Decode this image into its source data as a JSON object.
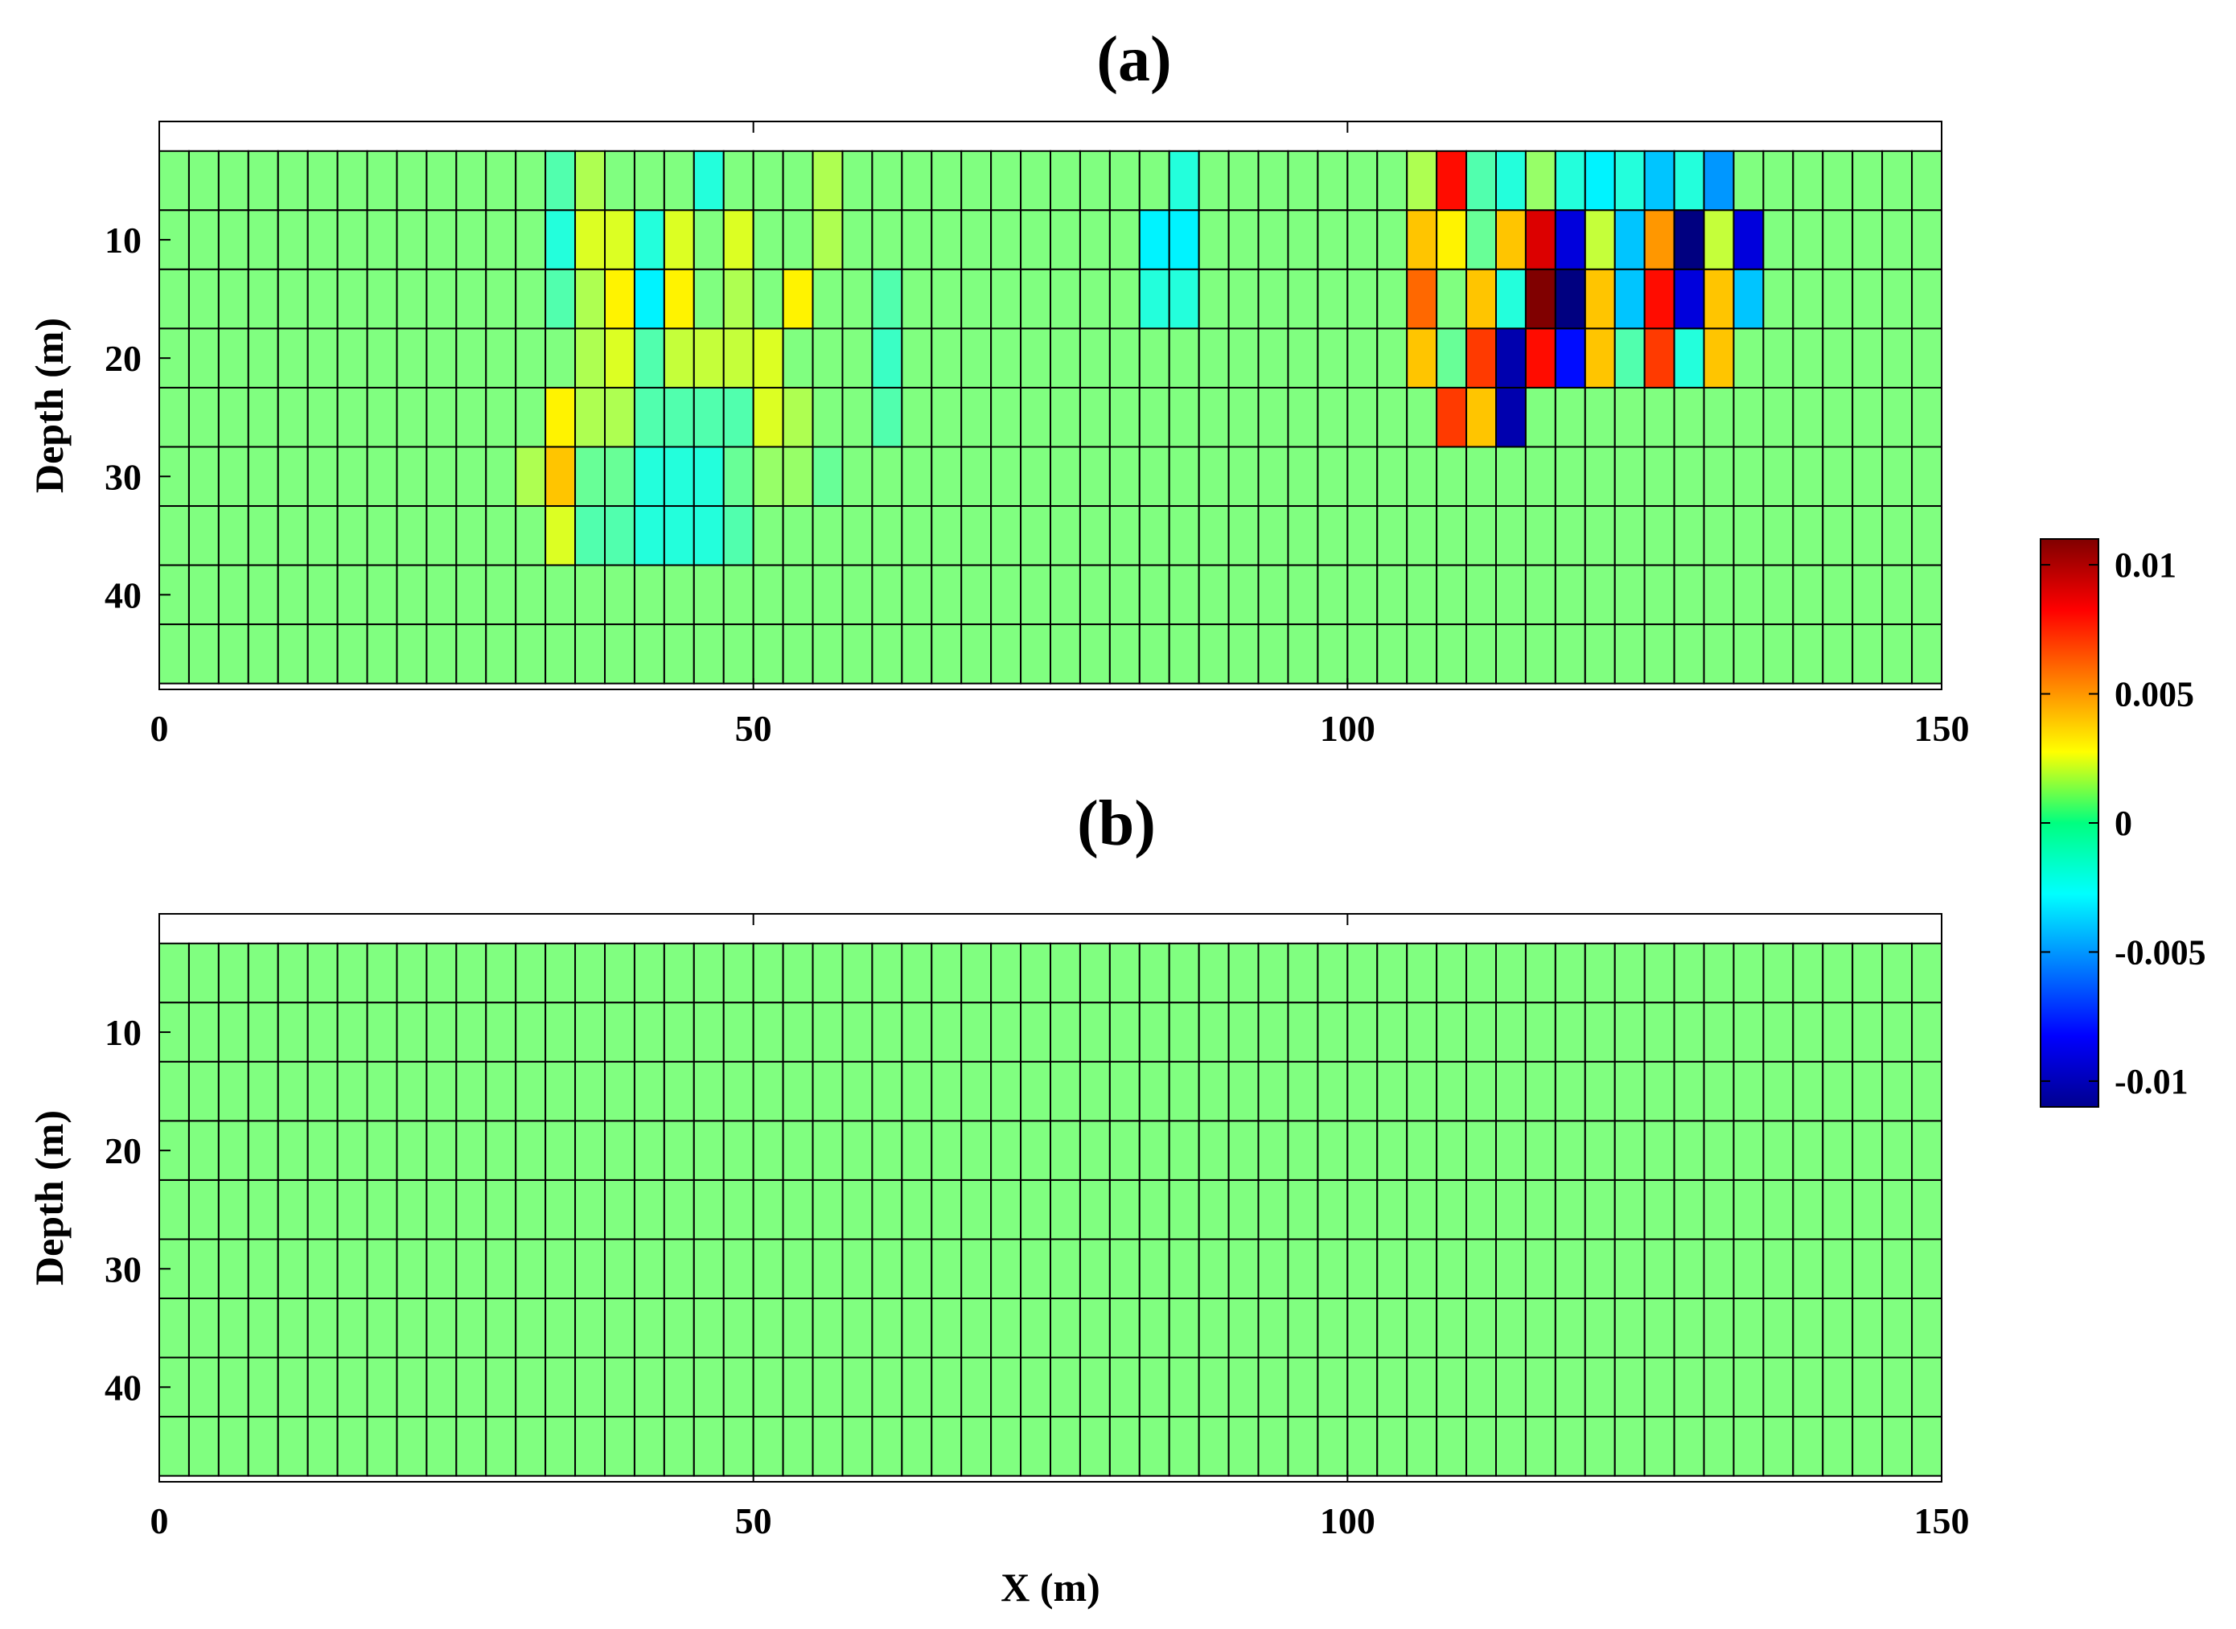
{
  "chart_data": {
    "type": "heatmap",
    "colormap": "jet",
    "colorbar": {
      "range": [
        -0.011,
        0.011
      ],
      "ticks": [
        0.01,
        0.005,
        0,
        -0.005,
        -0.01
      ],
      "tick_labels": [
        "0.01",
        "0.005",
        "0",
        "-0.005",
        "-0.01"
      ],
      "placement": "right"
    },
    "panels": [
      {
        "title": "(a)",
        "xlabel": "",
        "ylabel": "Depth (m)",
        "xlim": [
          0,
          150
        ],
        "ylim": [
          48,
          0
        ],
        "x_ticks": [
          0,
          50,
          100,
          150
        ],
        "x_tick_labels": [
          "0",
          "50",
          "100",
          "150"
        ],
        "y_ticks": [
          10,
          20,
          30,
          40
        ],
        "y_tick_labels": [
          "10",
          "20",
          "30",
          "40"
        ],
        "grid": {
          "x_edges_start": 0,
          "cell_width": 2.5,
          "n_cols": 60,
          "depth_edges": [
            2.5,
            7.5,
            12.5,
            17.5,
            22.5,
            27.5,
            32.5,
            37.5,
            42.5,
            47.5
          ],
          "n_rows": 9,
          "default_value": 0
        },
        "cells": [
          [
            0,
            13,
            -0.001
          ],
          [
            0,
            14,
            0.001
          ],
          [
            0,
            18,
            -0.002
          ],
          [
            0,
            22,
            0.001
          ],
          [
            0,
            34,
            -0.002
          ],
          [
            0,
            42,
            0.001
          ],
          [
            0,
            43,
            0.008
          ],
          [
            0,
            44,
            -0.001
          ],
          [
            0,
            45,
            -0.002
          ],
          [
            0,
            46,
            0.0005
          ],
          [
            0,
            47,
            -0.002
          ],
          [
            0,
            48,
            -0.003
          ],
          [
            0,
            49,
            -0.002
          ],
          [
            0,
            50,
            -0.004
          ],
          [
            0,
            51,
            -0.002
          ],
          [
            0,
            52,
            -0.005
          ],
          [
            1,
            13,
            -0.002
          ],
          [
            1,
            14,
            0.002
          ],
          [
            1,
            15,
            0.002
          ],
          [
            1,
            16,
            -0.002
          ],
          [
            1,
            17,
            0.002
          ],
          [
            1,
            19,
            0.002
          ],
          [
            1,
            22,
            0.001
          ],
          [
            1,
            33,
            -0.003
          ],
          [
            1,
            34,
            -0.003
          ],
          [
            1,
            42,
            0.004
          ],
          [
            1,
            43,
            0.003
          ],
          [
            1,
            44,
            -0.0005
          ],
          [
            1,
            45,
            0.004
          ],
          [
            1,
            46,
            0.009
          ],
          [
            1,
            47,
            -0.009
          ],
          [
            1,
            48,
            0.0015
          ],
          [
            1,
            49,
            -0.004
          ],
          [
            1,
            50,
            0.005
          ],
          [
            1,
            51,
            -0.011
          ],
          [
            1,
            52,
            0.0015
          ],
          [
            1,
            53,
            -0.009
          ],
          [
            2,
            13,
            -0.001
          ],
          [
            2,
            14,
            0.001
          ],
          [
            2,
            15,
            0.003
          ],
          [
            2,
            16,
            -0.003
          ],
          [
            2,
            17,
            0.003
          ],
          [
            2,
            19,
            0.001
          ],
          [
            2,
            21,
            0.003
          ],
          [
            2,
            24,
            -0.001
          ],
          [
            2,
            33,
            -0.002
          ],
          [
            2,
            34,
            -0.002
          ],
          [
            2,
            42,
            0.006
          ],
          [
            2,
            44,
            0.004
          ],
          [
            2,
            45,
            -0.002
          ],
          [
            2,
            46,
            0.011
          ],
          [
            2,
            47,
            -0.011
          ],
          [
            2,
            48,
            0.004
          ],
          [
            2,
            49,
            -0.004
          ],
          [
            2,
            50,
            0.008
          ],
          [
            2,
            51,
            -0.009
          ],
          [
            2,
            52,
            0.004
          ],
          [
            2,
            53,
            -0.004
          ],
          [
            3,
            14,
            0.001
          ],
          [
            3,
            15,
            0.002
          ],
          [
            3,
            16,
            -0.001
          ],
          [
            3,
            17,
            0.0015
          ],
          [
            3,
            18,
            0.0015
          ],
          [
            3,
            19,
            0.0015
          ],
          [
            3,
            20,
            0.002
          ],
          [
            3,
            24,
            -0.0015
          ],
          [
            3,
            42,
            0.004
          ],
          [
            3,
            43,
            -0.0005
          ],
          [
            3,
            44,
            0.007
          ],
          [
            3,
            45,
            -0.01
          ],
          [
            3,
            46,
            0.008
          ],
          [
            3,
            47,
            -0.008
          ],
          [
            3,
            48,
            0.004
          ],
          [
            3,
            49,
            -0.001
          ],
          [
            3,
            50,
            0.007
          ],
          [
            3,
            51,
            -0.002
          ],
          [
            3,
            52,
            0.004
          ],
          [
            4,
            13,
            0.003
          ],
          [
            4,
            14,
            0.001
          ],
          [
            4,
            15,
            0.001
          ],
          [
            4,
            16,
            -0.001
          ],
          [
            4,
            17,
            -0.001
          ],
          [
            4,
            18,
            -0.001
          ],
          [
            4,
            19,
            -0.001
          ],
          [
            4,
            20,
            0.002
          ],
          [
            4,
            21,
            0.001
          ],
          [
            4,
            24,
            -0.001
          ],
          [
            4,
            43,
            0.007
          ],
          [
            4,
            44,
            0.004
          ],
          [
            4,
            45,
            -0.01
          ],
          [
            5,
            12,
            0.001
          ],
          [
            5,
            13,
            0.004
          ],
          [
            5,
            14,
            -0.0005
          ],
          [
            5,
            15,
            -0.0005
          ],
          [
            5,
            16,
            -0.002
          ],
          [
            5,
            17,
            -0.002
          ],
          [
            5,
            18,
            -0.002
          ],
          [
            5,
            19,
            -0.0005
          ],
          [
            5,
            20,
            0.0005
          ],
          [
            5,
            21,
            0.0005
          ],
          [
            5,
            22,
            -0.0005
          ],
          [
            6,
            13,
            0.002
          ],
          [
            6,
            14,
            -0.001
          ],
          [
            6,
            15,
            -0.001
          ],
          [
            6,
            16,
            -0.002
          ],
          [
            6,
            17,
            -0.002
          ],
          [
            6,
            18,
            -0.002
          ],
          [
            6,
            19,
            -0.001
          ]
        ]
      },
      {
        "title": "(b)",
        "xlabel": "X (m)",
        "ylabel": "Depth (m)",
        "xlim": [
          0,
          150
        ],
        "ylim": [
          48,
          0
        ],
        "x_ticks": [
          0,
          50,
          100,
          150
        ],
        "x_tick_labels": [
          "0",
          "50",
          "100",
          "150"
        ],
        "y_ticks": [
          10,
          20,
          30,
          40
        ],
        "y_tick_labels": [
          "10",
          "20",
          "30",
          "40"
        ],
        "grid": {
          "x_edges_start": 0,
          "cell_width": 2.5,
          "n_cols": 60,
          "depth_edges": [
            2.5,
            7.5,
            12.5,
            17.5,
            22.5,
            27.5,
            32.5,
            37.5,
            42.5,
            47.5
          ],
          "n_rows": 9,
          "default_value": 0
        },
        "cells": []
      }
    ]
  }
}
